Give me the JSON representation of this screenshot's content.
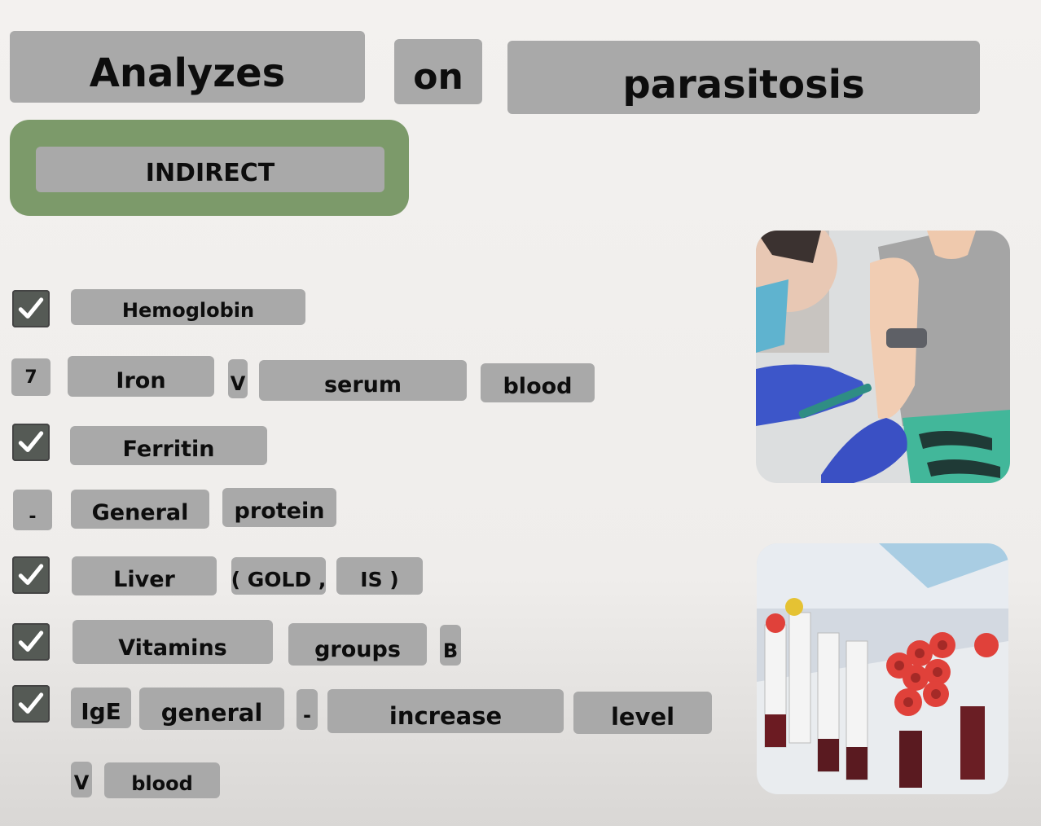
{
  "title": {
    "word1": "Analyzes",
    "word2": "on",
    "word3": "parasitosis"
  },
  "badge": {
    "label": "INDIRECT"
  },
  "rows": {
    "r1": {
      "w1": "Hemoglobin"
    },
    "r2": {
      "marker": "7",
      "w1": "Iron",
      "w2": "V",
      "w3": "serum",
      "w4": "blood"
    },
    "r3": {
      "w1": "Ferritin"
    },
    "r4": {
      "marker": "-",
      "w1": "General",
      "w2": "protein"
    },
    "r5": {
      "w1": "Liver",
      "w2": "( GOLD ,",
      "w3": "IS )"
    },
    "r6": {
      "w1": "Vitamins",
      "w2": "groups",
      "w3": "B"
    },
    "r7": {
      "w1": "IgE",
      "w2": "general",
      "w3": "-",
      "w4": "increase",
      "w5": "level",
      "w6": "V",
      "w7": "blood"
    }
  },
  "images": {
    "top": "blood-draw-photo",
    "bottom": "blood-sample-tubes-photo"
  },
  "colors": {
    "box": "#a9a9a9",
    "badge_frame": "#7c9a6a",
    "check": "#555a55"
  }
}
